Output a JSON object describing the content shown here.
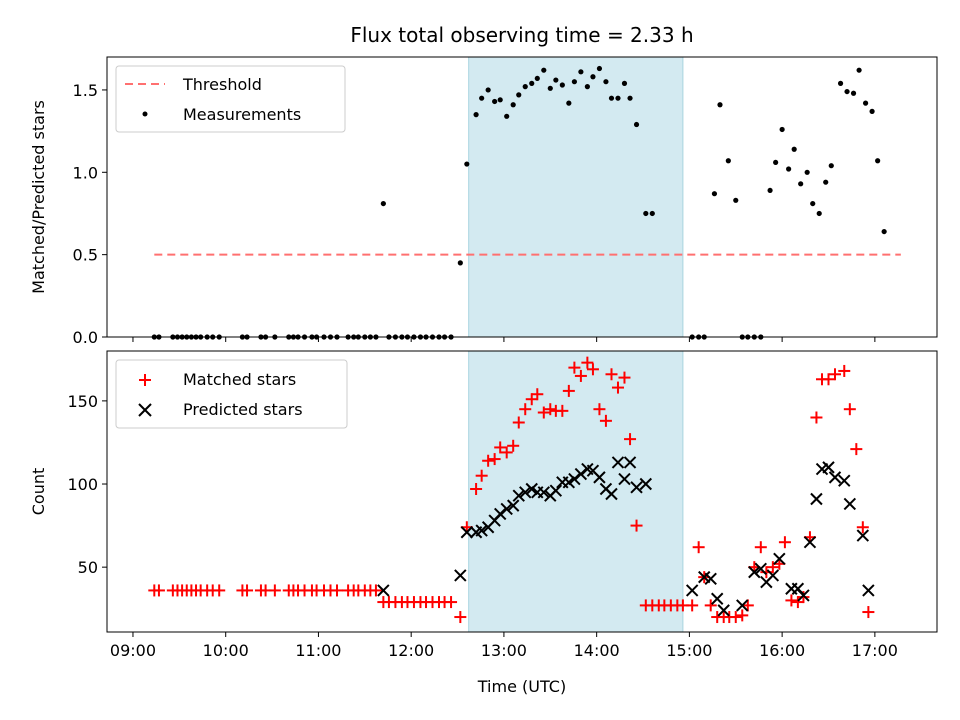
{
  "title": "Flux total observing time = 2.33 h",
  "shaded_color": "#d3eaf1",
  "chart_data": [
    {
      "id": "flux",
      "type": "scatter",
      "ylabel": "Matched/Predicted stars",
      "xlabel": "",
      "xlim": [
        8.72,
        17.67
      ],
      "ylim": [
        0,
        1.7
      ],
      "yticks": [
        0.0,
        0.5,
        1.0,
        1.5
      ],
      "ytick_labels": [
        "0.0",
        "0.5",
        "1.0",
        "1.5"
      ],
      "xticks": [
        9,
        10,
        11,
        12,
        13,
        14,
        15,
        16,
        17
      ],
      "shaded_region": [
        12.62,
        14.93
      ],
      "legend": [
        "Threshold",
        "Measurements"
      ],
      "threshold": {
        "name": "Threshold",
        "value": 0.5,
        "x_range": [
          9.23,
          17.28
        ],
        "color": "#ff7070"
      },
      "measurements": {
        "name": "Measurements",
        "color": "#000000",
        "points": [
          [
            9.23,
            0
          ],
          [
            9.28,
            0
          ],
          [
            9.43,
            0
          ],
          [
            9.48,
            0
          ],
          [
            9.53,
            0
          ],
          [
            9.58,
            0
          ],
          [
            9.63,
            0
          ],
          [
            9.68,
            0
          ],
          [
            9.73,
            0
          ],
          [
            9.8,
            0
          ],
          [
            9.86,
            0
          ],
          [
            9.93,
            0
          ],
          [
            10.18,
            0
          ],
          [
            10.23,
            0
          ],
          [
            10.38,
            0
          ],
          [
            10.43,
            0
          ],
          [
            10.53,
            0
          ],
          [
            10.68,
            0
          ],
          [
            10.73,
            0
          ],
          [
            10.78,
            0
          ],
          [
            10.85,
            0
          ],
          [
            10.93,
            0
          ],
          [
            10.98,
            0
          ],
          [
            11.06,
            0
          ],
          [
            11.13,
            0
          ],
          [
            11.2,
            0
          ],
          [
            11.32,
            0
          ],
          [
            11.38,
            0
          ],
          [
            11.43,
            0
          ],
          [
            11.5,
            0
          ],
          [
            11.56,
            0
          ],
          [
            11.62,
            0
          ],
          [
            11.7,
            0.81
          ],
          [
            11.76,
            0
          ],
          [
            11.83,
            0
          ],
          [
            11.9,
            0
          ],
          [
            11.96,
            0
          ],
          [
            12.03,
            0
          ],
          [
            12.1,
            0
          ],
          [
            12.16,
            0
          ],
          [
            12.23,
            0
          ],
          [
            12.3,
            0
          ],
          [
            12.36,
            0
          ],
          [
            12.43,
            0
          ],
          [
            12.53,
            0.45
          ],
          [
            12.6,
            1.05
          ],
          [
            12.7,
            1.35
          ],
          [
            12.76,
            1.45
          ],
          [
            12.83,
            1.5
          ],
          [
            12.9,
            1.43
          ],
          [
            12.96,
            1.44
          ],
          [
            13.03,
            1.34
          ],
          [
            13.1,
            1.41
          ],
          [
            13.16,
            1.47
          ],
          [
            13.23,
            1.52
          ],
          [
            13.3,
            1.54
          ],
          [
            13.36,
            1.57
          ],
          [
            13.43,
            1.62
          ],
          [
            13.5,
            1.51
          ],
          [
            13.56,
            1.56
          ],
          [
            13.63,
            1.53
          ],
          [
            13.7,
            1.42
          ],
          [
            13.76,
            1.55
          ],
          [
            13.83,
            1.61
          ],
          [
            13.9,
            1.52
          ],
          [
            13.96,
            1.58
          ],
          [
            14.03,
            1.63
          ],
          [
            14.1,
            1.55
          ],
          [
            14.16,
            1.45
          ],
          [
            14.23,
            1.45
          ],
          [
            14.3,
            1.54
          ],
          [
            14.36,
            1.45
          ],
          [
            14.43,
            1.29
          ],
          [
            14.53,
            0.75
          ],
          [
            14.6,
            0.75
          ],
          [
            15.03,
            0
          ],
          [
            15.1,
            0
          ],
          [
            15.16,
            0
          ],
          [
            15.27,
            0.87
          ],
          [
            15.33,
            1.41
          ],
          [
            15.42,
            1.07
          ],
          [
            15.5,
            0.83
          ],
          [
            15.57,
            0
          ],
          [
            15.63,
            0
          ],
          [
            15.7,
            0
          ],
          [
            15.77,
            0
          ],
          [
            15.87,
            0.89
          ],
          [
            15.93,
            1.06
          ],
          [
            16.0,
            1.26
          ],
          [
            16.07,
            1.02
          ],
          [
            16.13,
            1.14
          ],
          [
            16.2,
            0.93
          ],
          [
            16.27,
            1.0
          ],
          [
            16.33,
            0.81
          ],
          [
            16.4,
            0.75
          ],
          [
            16.47,
            0.94
          ],
          [
            16.53,
            1.04
          ],
          [
            16.63,
            1.54
          ],
          [
            16.7,
            1.49
          ],
          [
            16.77,
            1.48
          ],
          [
            16.83,
            1.62
          ],
          [
            16.9,
            1.42
          ],
          [
            16.97,
            1.37
          ],
          [
            17.03,
            1.07
          ],
          [
            17.1,
            0.64
          ]
        ]
      }
    },
    {
      "id": "counts",
      "type": "scatter",
      "ylabel": "Count",
      "xlabel": "Time (UTC)",
      "xlim": [
        8.72,
        17.67
      ],
      "ylim": [
        11,
        180
      ],
      "yticks": [
        50,
        100,
        150
      ],
      "ytick_labels": [
        "50",
        "100",
        "150"
      ],
      "xticks": [
        9,
        10,
        11,
        12,
        13,
        14,
        15,
        16,
        17
      ],
      "xtick_labels": [
        "09:00",
        "10:00",
        "11:00",
        "12:00",
        "13:00",
        "14:00",
        "15:00",
        "16:00",
        "17:00"
      ],
      "shaded_region": [
        12.62,
        14.93
      ],
      "legend": [
        "Matched stars",
        "Predicted stars"
      ],
      "matched": {
        "name": "Matched stars",
        "color": "#ff0000",
        "points": [
          [
            9.23,
            36
          ],
          [
            9.28,
            36
          ],
          [
            9.43,
            36
          ],
          [
            9.48,
            36
          ],
          [
            9.53,
            36
          ],
          [
            9.58,
            36
          ],
          [
            9.63,
            36
          ],
          [
            9.68,
            36
          ],
          [
            9.73,
            36
          ],
          [
            9.8,
            36
          ],
          [
            9.86,
            36
          ],
          [
            9.93,
            36
          ],
          [
            10.18,
            36
          ],
          [
            10.23,
            36
          ],
          [
            10.38,
            36
          ],
          [
            10.43,
            36
          ],
          [
            10.53,
            36
          ],
          [
            10.68,
            36
          ],
          [
            10.73,
            36
          ],
          [
            10.78,
            36
          ],
          [
            10.85,
            36
          ],
          [
            10.93,
            36
          ],
          [
            10.98,
            36
          ],
          [
            11.06,
            36
          ],
          [
            11.13,
            36
          ],
          [
            11.2,
            36
          ],
          [
            11.32,
            36
          ],
          [
            11.38,
            36
          ],
          [
            11.43,
            36
          ],
          [
            11.5,
            36
          ],
          [
            11.56,
            36
          ],
          [
            11.62,
            36
          ],
          [
            11.7,
            29
          ],
          [
            11.76,
            29
          ],
          [
            11.83,
            29
          ],
          [
            11.9,
            29
          ],
          [
            11.96,
            29
          ],
          [
            12.03,
            29
          ],
          [
            12.1,
            29
          ],
          [
            12.16,
            29
          ],
          [
            12.23,
            29
          ],
          [
            12.3,
            29
          ],
          [
            12.36,
            29
          ],
          [
            12.43,
            29
          ],
          [
            12.53,
            20
          ],
          [
            12.6,
            74
          ],
          [
            12.7,
            97
          ],
          [
            12.76,
            105
          ],
          [
            12.83,
            114
          ],
          [
            12.9,
            115
          ],
          [
            12.96,
            122
          ],
          [
            13.03,
            119
          ],
          [
            13.1,
            123
          ],
          [
            13.16,
            137
          ],
          [
            13.23,
            145
          ],
          [
            13.3,
            151
          ],
          [
            13.36,
            154
          ],
          [
            13.43,
            143
          ],
          [
            13.5,
            145
          ],
          [
            13.56,
            144
          ],
          [
            13.63,
            144
          ],
          [
            13.7,
            156
          ],
          [
            13.76,
            170
          ],
          [
            13.83,
            165
          ],
          [
            13.9,
            173
          ],
          [
            13.96,
            169
          ],
          [
            14.03,
            145
          ],
          [
            14.1,
            138
          ],
          [
            14.16,
            166
          ],
          [
            14.23,
            158
          ],
          [
            14.3,
            164
          ],
          [
            14.36,
            127
          ],
          [
            14.43,
            75
          ],
          [
            14.53,
            27
          ],
          [
            14.6,
            27
          ],
          [
            14.67,
            27
          ],
          [
            14.73,
            27
          ],
          [
            14.8,
            27
          ],
          [
            14.87,
            27
          ],
          [
            14.93,
            27
          ],
          [
            15.03,
            27
          ],
          [
            15.1,
            62
          ],
          [
            15.16,
            44
          ],
          [
            15.23,
            27
          ],
          [
            15.3,
            20
          ],
          [
            15.37,
            20
          ],
          [
            15.43,
            20
          ],
          [
            15.5,
            20
          ],
          [
            15.57,
            21
          ],
          [
            15.63,
            27
          ],
          [
            15.7,
            50
          ],
          [
            15.77,
            62
          ],
          [
            15.83,
            47
          ],
          [
            15.9,
            50
          ],
          [
            15.97,
            52
          ],
          [
            16.03,
            65
          ],
          [
            16.1,
            30
          ],
          [
            16.17,
            29
          ],
          [
            16.23,
            32
          ],
          [
            16.3,
            68
          ],
          [
            16.37,
            140
          ],
          [
            16.43,
            163
          ],
          [
            16.5,
            163
          ],
          [
            16.57,
            166
          ],
          [
            16.67,
            168
          ],
          [
            16.73,
            145
          ],
          [
            16.8,
            121
          ],
          [
            16.87,
            74
          ],
          [
            16.93,
            23
          ]
        ]
      },
      "predicted": {
        "name": "Predicted stars",
        "color": "#000000",
        "points": [
          [
            11.7,
            36
          ],
          [
            12.53,
            45
          ],
          [
            12.6,
            71
          ],
          [
            12.7,
            71
          ],
          [
            12.76,
            72
          ],
          [
            12.83,
            74
          ],
          [
            12.9,
            78
          ],
          [
            12.96,
            82
          ],
          [
            13.03,
            85
          ],
          [
            13.1,
            87
          ],
          [
            13.16,
            93
          ],
          [
            13.23,
            95
          ],
          [
            13.3,
            97
          ],
          [
            13.36,
            95
          ],
          [
            13.43,
            95
          ],
          [
            13.5,
            93
          ],
          [
            13.56,
            96
          ],
          [
            13.63,
            101
          ],
          [
            13.7,
            101
          ],
          [
            13.76,
            103
          ],
          [
            13.83,
            106
          ],
          [
            13.9,
            109
          ],
          [
            13.96,
            108
          ],
          [
            14.03,
            104
          ],
          [
            14.1,
            97
          ],
          [
            14.16,
            94
          ],
          [
            14.23,
            113
          ],
          [
            14.3,
            103
          ],
          [
            14.36,
            113
          ],
          [
            14.43,
            98
          ],
          [
            14.53,
            100
          ],
          [
            15.03,
            36
          ],
          [
            15.16,
            44
          ],
          [
            15.23,
            43
          ],
          [
            15.3,
            31
          ],
          [
            15.37,
            24
          ],
          [
            15.57,
            27
          ],
          [
            15.7,
            47
          ],
          [
            15.77,
            49
          ],
          [
            15.83,
            41
          ],
          [
            15.9,
            45
          ],
          [
            15.97,
            55
          ],
          [
            16.1,
            37
          ],
          [
            16.17,
            37
          ],
          [
            16.23,
            33
          ],
          [
            16.3,
            65
          ],
          [
            16.37,
            91
          ],
          [
            16.43,
            109
          ],
          [
            16.5,
            110
          ],
          [
            16.57,
            104
          ],
          [
            16.67,
            102
          ],
          [
            16.73,
            88
          ],
          [
            16.87,
            69
          ],
          [
            16.93,
            36
          ]
        ]
      }
    }
  ]
}
